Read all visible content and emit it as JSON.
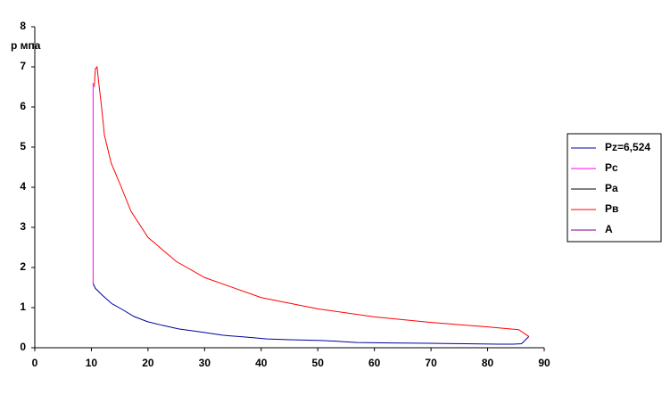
{
  "chart_data": {
    "type": "line",
    "y_label": "р мпа",
    "xlim": [
      0,
      90
    ],
    "xticks": [
      0,
      10,
      20,
      30,
      40,
      50,
      60,
      70,
      80,
      90
    ],
    "ylim": [
      0,
      8
    ],
    "yticks": [
      0,
      1,
      2,
      3,
      4,
      5,
      6,
      7,
      8
    ],
    "grid": false,
    "legend": "right",
    "series": [
      {
        "name": "Pz=6,524",
        "color": "#0000a0",
        "x": [
          10.3,
          10.7,
          12.0,
          13.6,
          15.5,
          17.5,
          19.9,
          22.5,
          25.4,
          29.0,
          33.3,
          37.0,
          41.0,
          45.0,
          50.6,
          53.5,
          56.9,
          63.0,
          69.5,
          76.0,
          82.0,
          84.5,
          86.0,
          87.3
        ],
        "y": [
          1.6,
          1.48,
          1.3,
          1.1,
          0.95,
          0.78,
          0.65,
          0.56,
          0.47,
          0.4,
          0.31,
          0.27,
          0.22,
          0.2,
          0.18,
          0.16,
          0.13,
          0.12,
          0.11,
          0.1,
          0.09,
          0.09,
          0.1,
          0.28
        ]
      },
      {
        "name": "Pc",
        "color": "#ff00ff",
        "x": [
          10.3,
          10.3
        ],
        "y": [
          1.6,
          6.6
        ]
      },
      {
        "name": "Pa",
        "color": "#000000",
        "x": [],
        "y": []
      },
      {
        "name": "Pв",
        "color": "#ff0000",
        "x": [
          87.3,
          85.5,
          80.0,
          70.0,
          60.0,
          50.0,
          40.0,
          30.0,
          25.0,
          20.0,
          17.0,
          15.0,
          13.5,
          12.3,
          11.8,
          11.3,
          11.0,
          10.7,
          10.5
        ],
        "y": [
          0.28,
          0.45,
          0.52,
          0.63,
          0.77,
          0.97,
          1.25,
          1.75,
          2.15,
          2.75,
          3.4,
          4.1,
          4.6,
          5.3,
          6.0,
          6.6,
          7.0,
          6.95,
          6.5
        ]
      },
      {
        "name": "A",
        "color": "#800080",
        "x": [],
        "y": []
      }
    ]
  }
}
